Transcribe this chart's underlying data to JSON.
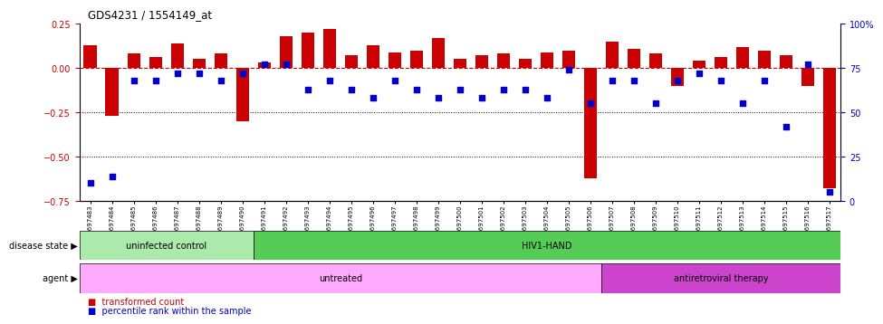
{
  "title": "GDS4231 / 1554149_at",
  "samples": [
    "GSM697483",
    "GSM697484",
    "GSM697485",
    "GSM697486",
    "GSM697487",
    "GSM697488",
    "GSM697489",
    "GSM697490",
    "GSM697491",
    "GSM697492",
    "GSM697493",
    "GSM697494",
    "GSM697495",
    "GSM697496",
    "GSM697497",
    "GSM697498",
    "GSM697499",
    "GSM697500",
    "GSM697501",
    "GSM697502",
    "GSM697503",
    "GSM697504",
    "GSM697505",
    "GSM697506",
    "GSM697507",
    "GSM697508",
    "GSM697509",
    "GSM697510",
    "GSM697511",
    "GSM697512",
    "GSM697513",
    "GSM697514",
    "GSM697515",
    "GSM697516",
    "GSM697517"
  ],
  "bar_values": [
    0.13,
    -0.27,
    0.08,
    0.06,
    0.14,
    0.05,
    0.08,
    -0.3,
    0.03,
    0.18,
    0.2,
    0.22,
    0.07,
    0.13,
    0.09,
    0.1,
    0.17,
    0.05,
    0.07,
    0.08,
    0.05,
    0.09,
    0.1,
    -0.62,
    0.15,
    0.11,
    0.08,
    -0.1,
    0.04,
    0.06,
    0.12,
    0.1,
    0.07,
    -0.1,
    -0.68
  ],
  "blue_pct": [
    10,
    14,
    68,
    68,
    72,
    72,
    68,
    72,
    77,
    77,
    63,
    68,
    63,
    58,
    68,
    63,
    58,
    63,
    58,
    63,
    63,
    58,
    74,
    55,
    68,
    68,
    55,
    68,
    72,
    68,
    55,
    68,
    42,
    77,
    5
  ],
  "bar_color": "#cc0000",
  "blue_color": "#0000cc",
  "ylim": [
    -0.75,
    0.25
  ],
  "yticks_left": [
    -0.75,
    -0.5,
    -0.25,
    0.0,
    0.25
  ],
  "yticks_right": [
    0,
    25,
    50,
    75,
    100
  ],
  "dotted_lines": [
    -0.25,
    -0.5
  ],
  "disease_state_groups": [
    {
      "label": "uninfected control",
      "start": 0,
      "end": 8,
      "color": "#aaeaaa"
    },
    {
      "label": "HIV1-HAND",
      "start": 8,
      "end": 35,
      "color": "#55cc55"
    }
  ],
  "agent_groups": [
    {
      "label": "untreated",
      "start": 0,
      "end": 24,
      "color": "#ffaaff"
    },
    {
      "label": "antiretroviral therapy",
      "start": 24,
      "end": 35,
      "color": "#cc44cc"
    }
  ],
  "disease_state_label": "disease state",
  "agent_label": "agent"
}
